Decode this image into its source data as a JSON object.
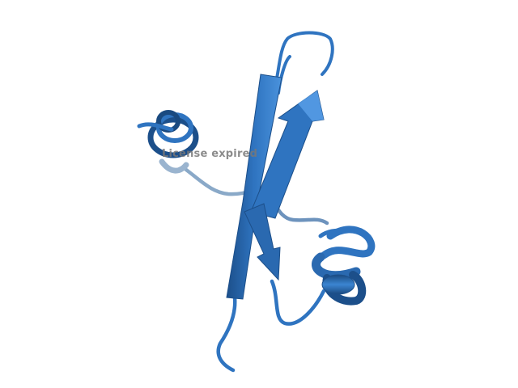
{
  "viewer": {
    "background": "#ffffff",
    "structure_color": "#2f74c0",
    "structure_shadow": "#1c4f8a",
    "structure_highlight": "#5aa0e8"
  },
  "watermark": {
    "text": "License expired"
  }
}
